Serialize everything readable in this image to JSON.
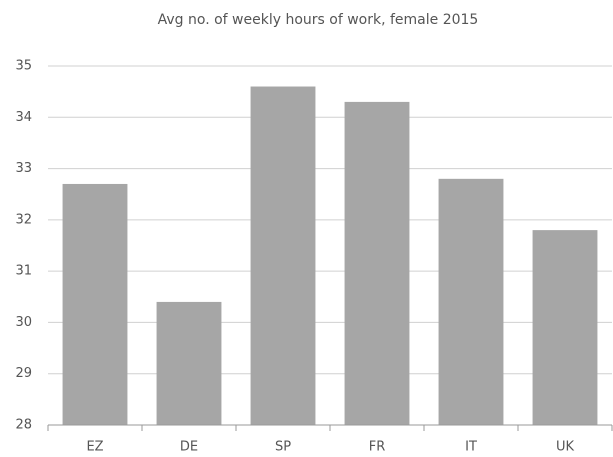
{
  "chart_data": {
    "type": "bar",
    "title": "Avg no. of weekly hours of work, female 2015",
    "categories": [
      "EZ",
      "DE",
      "SP",
      "FR",
      "IT",
      "UK"
    ],
    "values": [
      32.7,
      30.4,
      34.6,
      34.3,
      32.8,
      31.8
    ],
    "color": "#a6a6a6",
    "ylim": [
      28,
      35
    ],
    "yticks": [
      28,
      29,
      30,
      31,
      32,
      33,
      34,
      35
    ],
    "grid": true
  }
}
